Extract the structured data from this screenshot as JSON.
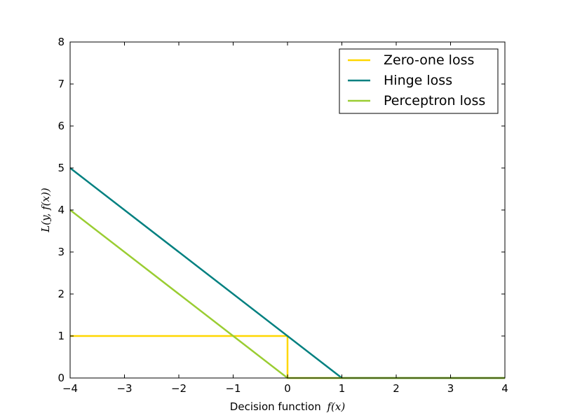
{
  "chart_data": {
    "type": "line",
    "title": "",
    "xlabel": "Decision function",
    "xlabel_math": "f(x)",
    "ylabel": "L(y, f(x))",
    "xlim": [
      -4,
      4
    ],
    "ylim": [
      0,
      8
    ],
    "xticks": [
      -4,
      -3,
      -2,
      -1,
      0,
      1,
      2,
      3,
      4
    ],
    "xtick_labels": [
      "−4",
      "−3",
      "−2",
      "−1",
      "0",
      "1",
      "2",
      "3",
      "4"
    ],
    "yticks": [
      0,
      1,
      2,
      3,
      4,
      5,
      6,
      7,
      8
    ],
    "ytick_labels": [
      "0",
      "1",
      "2",
      "3",
      "4",
      "5",
      "6",
      "7",
      "8"
    ],
    "grid": false,
    "legend_position": "top-right",
    "series": [
      {
        "name": "Zero-one loss",
        "color": "#ffd700",
        "x": [
          -4,
          0,
          0,
          4
        ],
        "y": [
          1,
          1,
          0,
          0
        ]
      },
      {
        "name": "Hinge loss",
        "color": "#008080",
        "x": [
          -4,
          1,
          4
        ],
        "y": [
          5,
          0,
          0
        ]
      },
      {
        "name": "Perceptron loss",
        "color": "#9acd32",
        "x": [
          -4,
          0,
          4
        ],
        "y": [
          4,
          0,
          0
        ]
      }
    ]
  }
}
